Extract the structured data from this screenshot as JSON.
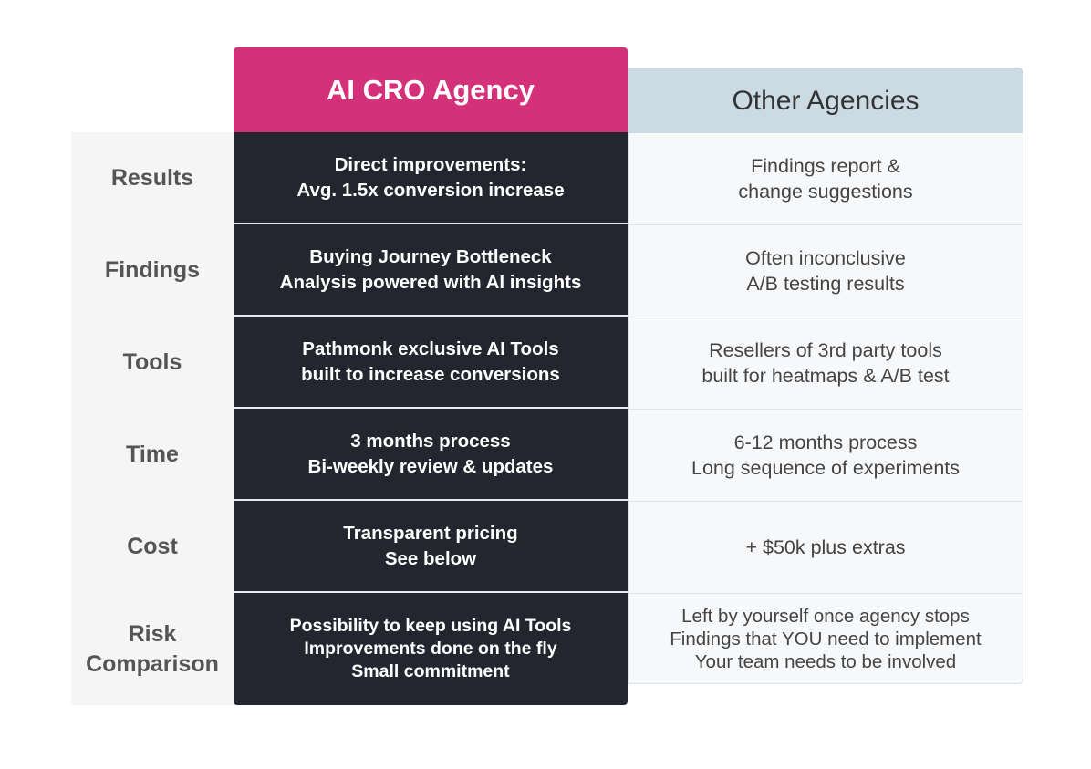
{
  "header": {
    "ours": "AI CRO Agency",
    "others": "Other Agencies"
  },
  "rows": [
    {
      "label": [
        "Results"
      ],
      "ours": [
        "Direct improvements:",
        "Avg. 1.5x conversion increase"
      ],
      "others": [
        "Findings report &",
        "change suggestions"
      ]
    },
    {
      "label": [
        "Findings"
      ],
      "ours": [
        "Buying Journey Bottleneck",
        "Analysis powered with AI insights"
      ],
      "others": [
        "Often inconclusive",
        "A/B testing results"
      ]
    },
    {
      "label": [
        "Tools"
      ],
      "ours": [
        "Pathmonk exclusive AI Tools",
        "built to increase conversions"
      ],
      "others": [
        "Resellers of 3rd party tools",
        "built for heatmaps & A/B test"
      ]
    },
    {
      "label": [
        "Time"
      ],
      "ours": [
        "3 months process",
        "Bi-weekly review & updates"
      ],
      "others": [
        "6-12 months process",
        "Long sequence of experiments"
      ]
    },
    {
      "label": [
        "Cost"
      ],
      "ours": [
        "Transparent pricing",
        "See below"
      ],
      "others": [
        "+ $50k plus extras"
      ]
    },
    {
      "label": [
        "Risk",
        "Comparison"
      ],
      "ours": [
        "Possibility to keep using AI Tools",
        "Improvements done on the fly",
        "Small commitment"
      ],
      "others": [
        "Left by yourself once agency stops",
        "Findings that YOU need to implement",
        "Your team needs to be involved"
      ]
    }
  ]
}
